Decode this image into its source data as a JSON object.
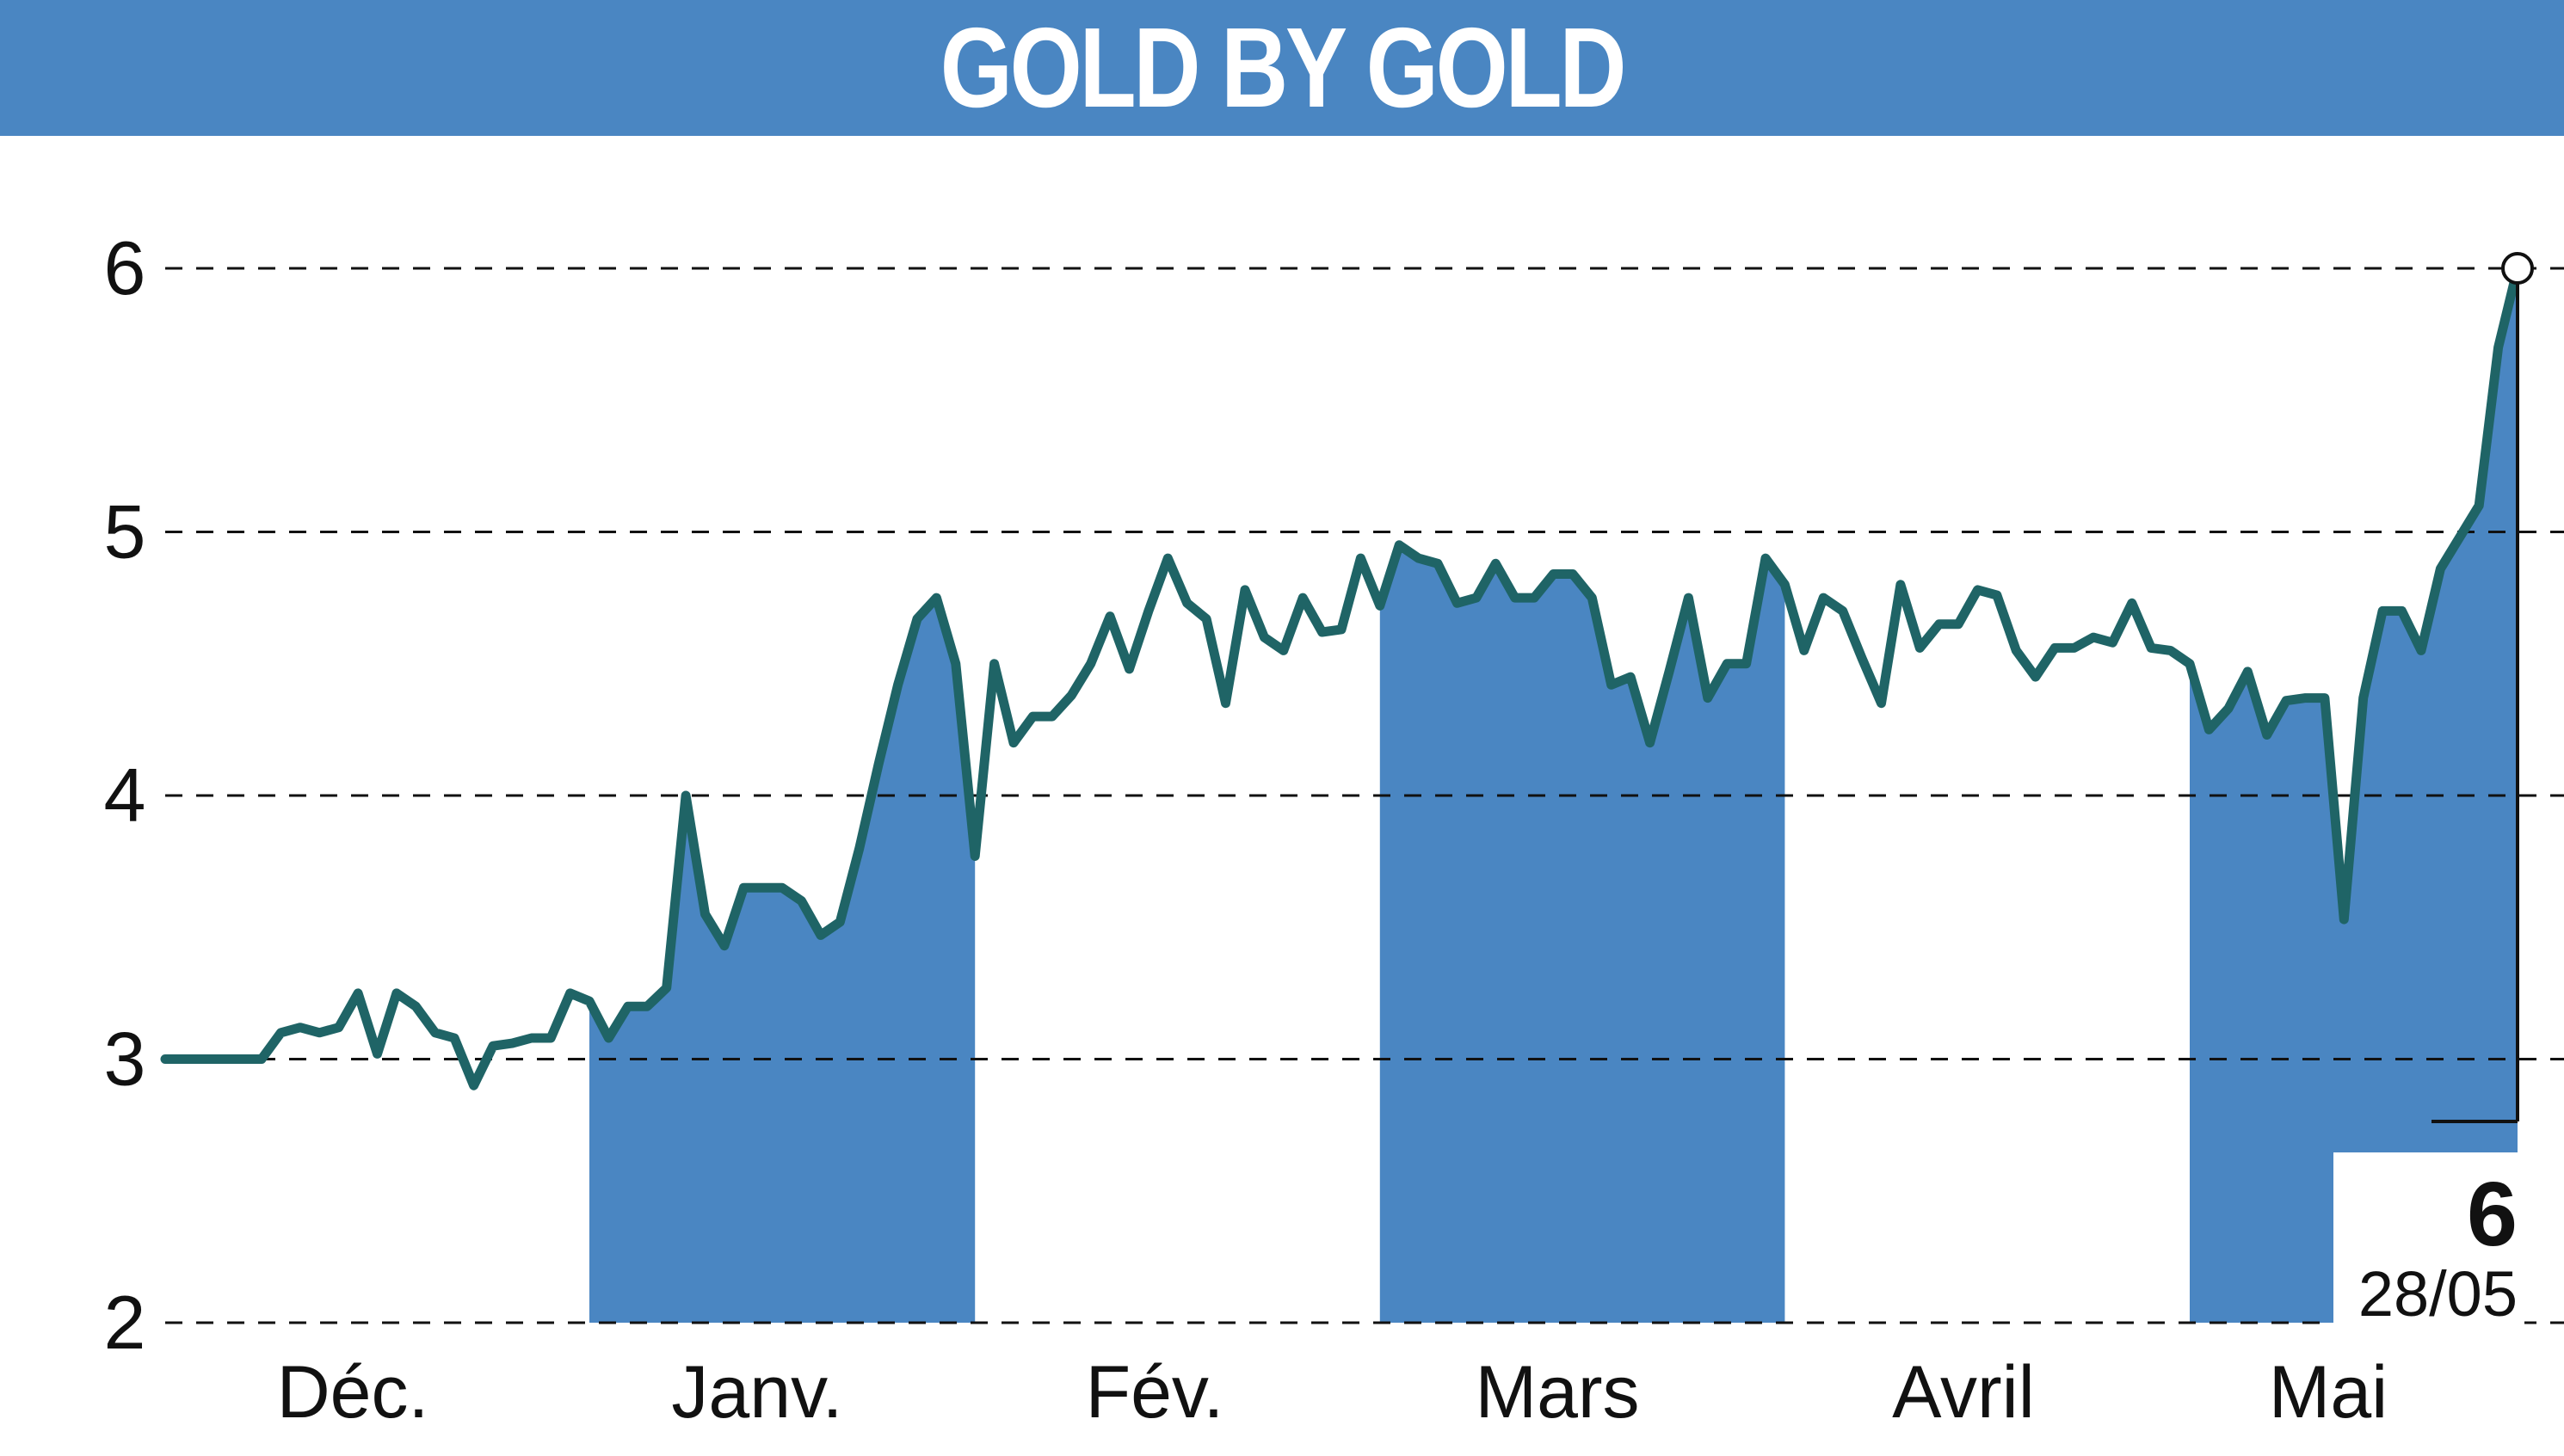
{
  "title": "GOLD BY GOLD",
  "colors": {
    "header": "#4a86c2",
    "band": "#4a86c2",
    "line": "#1f6466",
    "grid": "#111111",
    "text": "#111111"
  },
  "chart_data": {
    "type": "area",
    "title": "GOLD BY GOLD",
    "xlabel": "",
    "ylabel": "",
    "ylim": [
      2,
      6
    ],
    "yticks": [
      2,
      3,
      4,
      5,
      6
    ],
    "grid": "horizontal dashed",
    "month_labels": [
      "Déc.",
      "Janv.",
      "Fév.",
      "Mars",
      "Avril",
      "Mai"
    ],
    "shaded_months": [
      "Janv.",
      "Mars",
      "Mai"
    ],
    "last_value": {
      "value": "6",
      "date": "28/05"
    },
    "series": [
      {
        "values": [
          3.0,
          3.0,
          3.0,
          3.0,
          3.0,
          3.0,
          3.1,
          3.12,
          3.1,
          3.12,
          3.25,
          3.02,
          3.25,
          3.2,
          3.1,
          3.08,
          2.9,
          3.05,
          3.06,
          3.08,
          3.08,
          3.25,
          3.22,
          3.08,
          3.2,
          3.2,
          3.27,
          4.0,
          3.55,
          3.43,
          3.65,
          3.65,
          3.65,
          3.6,
          3.47,
          3.52,
          3.8,
          4.12,
          4.42,
          4.67,
          4.75,
          4.5,
          3.77,
          4.5,
          4.2,
          4.3,
          4.3,
          4.38,
          4.5,
          4.68,
          4.48,
          4.7,
          4.9,
          4.73,
          4.67,
          4.35,
          4.78,
          4.6,
          4.55,
          4.75,
          4.62,
          4.63,
          4.9,
          4.72,
          4.95,
          4.9,
          4.88,
          4.73,
          4.75,
          4.88,
          4.75,
          4.75,
          4.84,
          4.84,
          4.75,
          4.42,
          4.45,
          4.2,
          4.47,
          4.75,
          4.37,
          4.5,
          4.5,
          4.9,
          4.8,
          4.55,
          4.75,
          4.7,
          4.52,
          4.35,
          4.8,
          4.56,
          4.65,
          4.65,
          4.78,
          4.76,
          4.55,
          4.45,
          4.56,
          4.56,
          4.6,
          4.58,
          4.73,
          4.56,
          4.55,
          4.5,
          4.25,
          4.33,
          4.47,
          4.23,
          4.36,
          4.37,
          4.37,
          3.53,
          4.37,
          4.7,
          4.7,
          4.55,
          4.86,
          4.98,
          5.1,
          5.7,
          6.0
        ]
      }
    ]
  }
}
